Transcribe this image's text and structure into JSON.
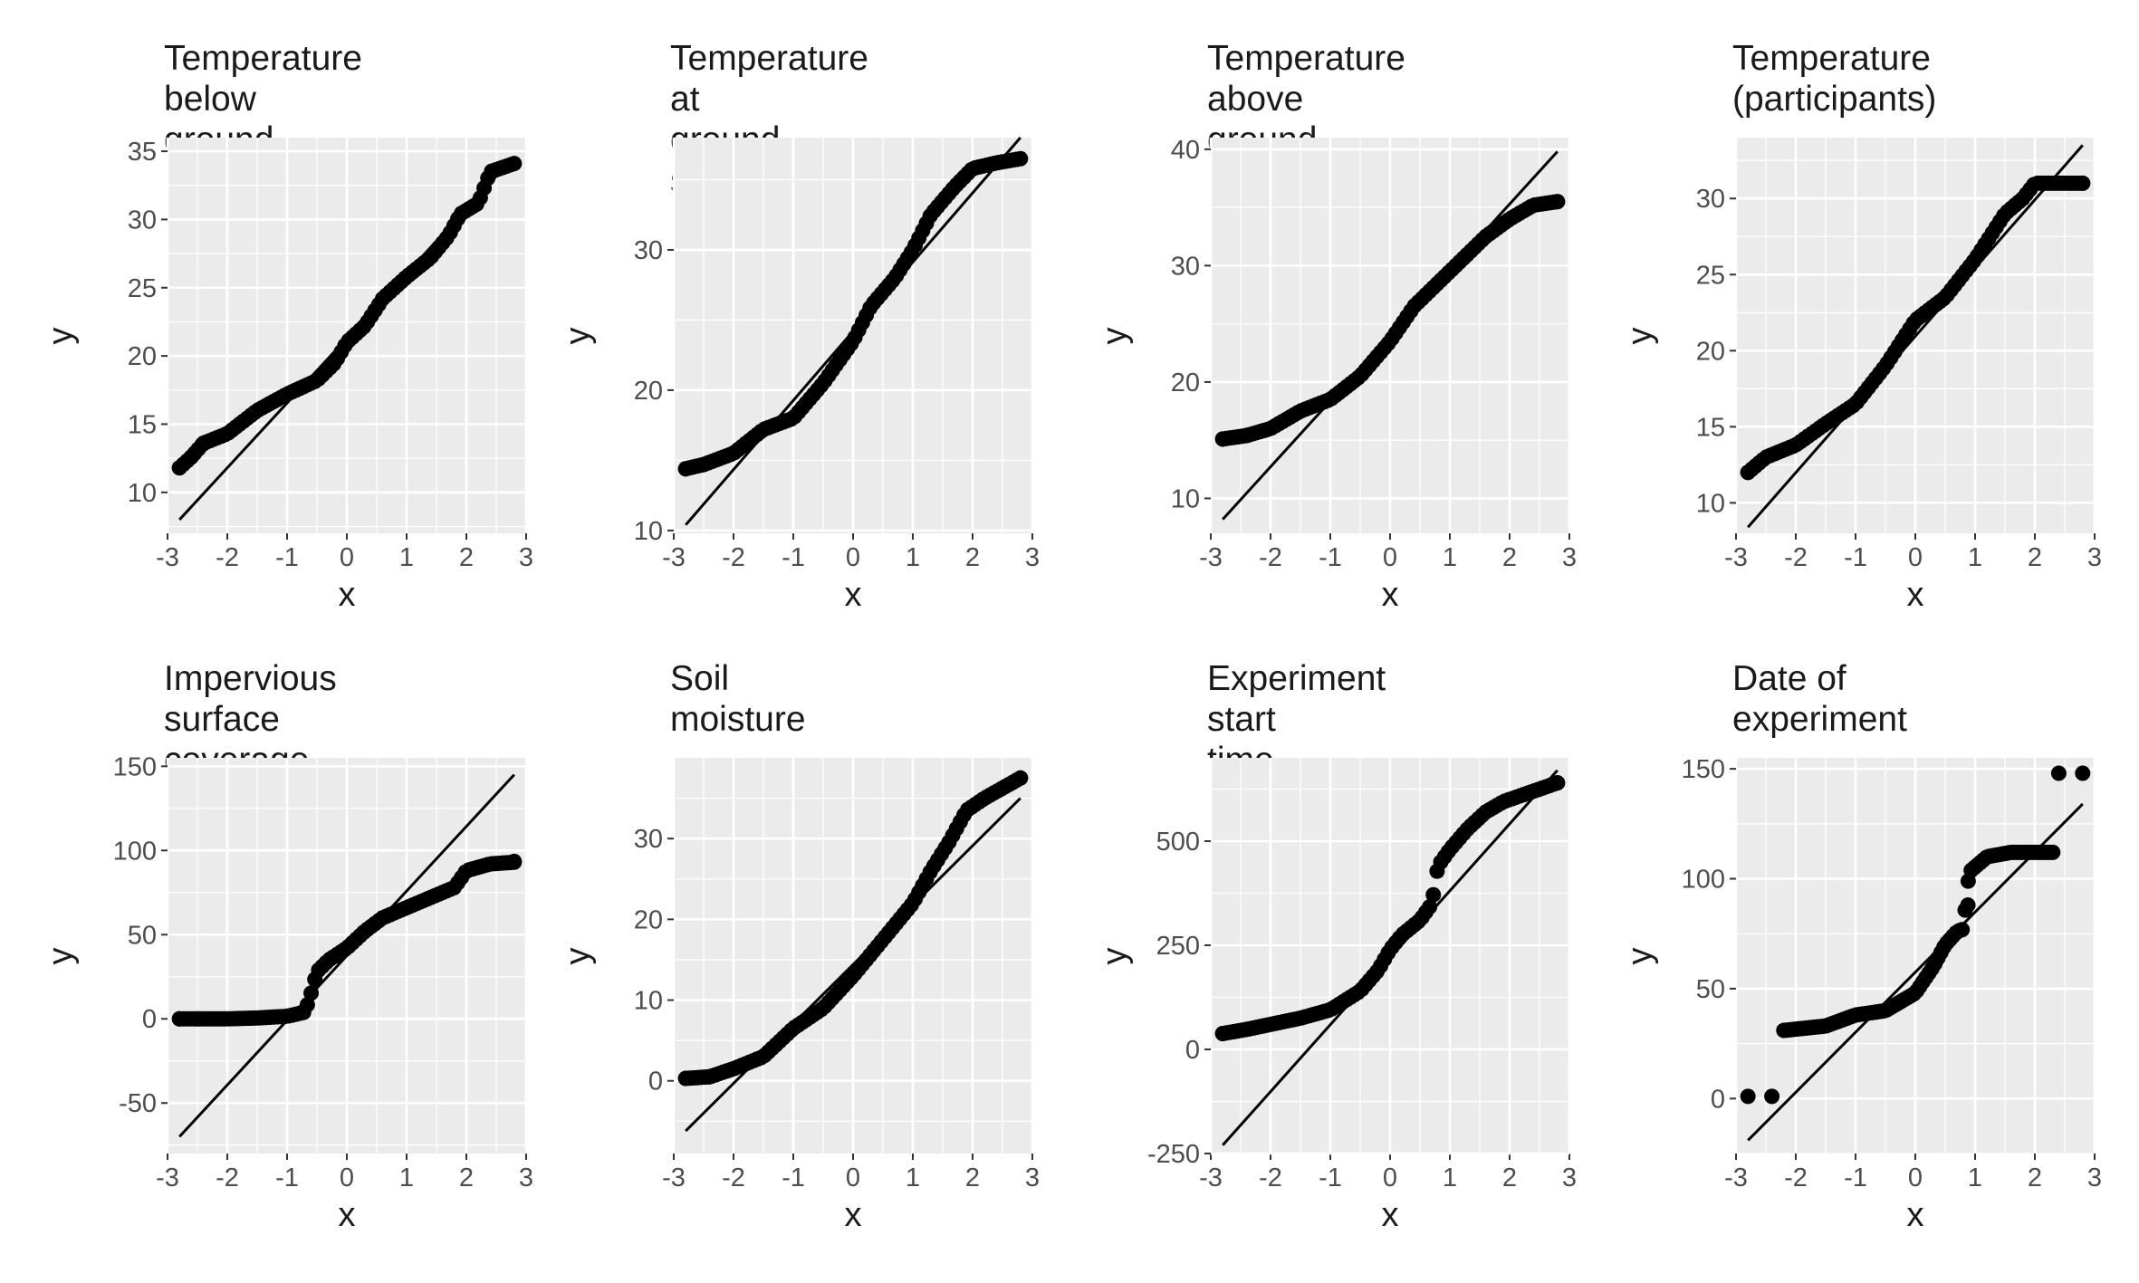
{
  "chart_data": [
    {
      "type": "scatter",
      "title": "Temperature below\nground",
      "xlabel": "x",
      "ylabel": "y",
      "xlim": [
        -3,
        3
      ],
      "ylim": [
        7,
        36
      ],
      "xticks": [
        -3,
        -2,
        -1,
        0,
        1,
        2,
        3
      ],
      "xtick_labels": [
        "-3",
        "-2",
        "-1",
        "0",
        "1",
        "2",
        "3"
      ],
      "yticks": [
        10,
        15,
        20,
        25,
        30,
        35
      ],
      "ytick_labels": [
        "10",
        "15",
        "20",
        "25",
        "30",
        "35"
      ],
      "grid": true,
      "reference_line": {
        "x": [
          -2.8,
          2.8
        ],
        "y": [
          8.0,
          34.6
        ]
      },
      "series": [
        {
          "knots": [
            [
              -2.8,
              11.8
            ],
            [
              -2.6,
              12.6
            ],
            [
              -2.4,
              13.6
            ],
            [
              -2.0,
              14.3
            ],
            [
              -1.5,
              16.0
            ],
            [
              -1.0,
              17.2
            ],
            [
              -0.5,
              18.2
            ],
            [
              -0.2,
              19.5
            ],
            [
              0.0,
              21.0
            ],
            [
              0.3,
              22.2
            ],
            [
              0.6,
              24.2
            ],
            [
              1.0,
              25.8
            ],
            [
              1.4,
              27.2
            ],
            [
              1.7,
              28.8
            ],
            [
              1.9,
              30.4
            ],
            [
              2.2,
              31.2
            ],
            [
              2.4,
              33.5
            ],
            [
              2.8,
              34.1
            ]
          ],
          "points": [
            [
              -2.8,
              11.8
            ],
            [
              -2.6,
              12.6
            ],
            [
              -2.4,
              13.6
            ]
          ]
        }
      ]
    },
    {
      "type": "scatter",
      "title": "Temperature at\nground surface",
      "xlabel": "x",
      "ylabel": "y",
      "xlim": [
        -3,
        3
      ],
      "ylim": [
        9.8,
        38
      ],
      "xticks": [
        -3,
        -2,
        -1,
        0,
        1,
        2,
        3
      ],
      "xtick_labels": [
        "-3",
        "-2",
        "-1",
        "0",
        "1",
        "2",
        "3"
      ],
      "yticks": [
        10,
        20,
        30
      ],
      "ytick_labels": [
        "10",
        "20",
        "30"
      ],
      "grid": true,
      "reference_line": {
        "x": [
          -2.8,
          2.8
        ],
        "y": [
          10.4,
          38.0
        ]
      },
      "series": [
        {
          "knots": [
            [
              -2.8,
              14.4
            ],
            [
              -2.5,
              14.7
            ],
            [
              -2.0,
              15.5
            ],
            [
              -1.5,
              17.2
            ],
            [
              -1.0,
              18.0
            ],
            [
              -0.5,
              20.5
            ],
            [
              0.0,
              23.5
            ],
            [
              0.3,
              26.0
            ],
            [
              0.7,
              28.0
            ],
            [
              1.0,
              30.0
            ],
            [
              1.3,
              32.5
            ],
            [
              1.7,
              34.5
            ],
            [
              2.0,
              35.8
            ],
            [
              2.4,
              36.2
            ],
            [
              2.8,
              36.5
            ]
          ],
          "points": [
            [
              -2.8,
              14.4
            ],
            [
              -2.5,
              14.7
            ]
          ]
        }
      ]
    },
    {
      "type": "scatter",
      "title": "Temperature above\nground",
      "xlabel": "x",
      "ylabel": "y",
      "xlim": [
        -3,
        3
      ],
      "ylim": [
        7,
        41
      ],
      "xticks": [
        -3,
        -2,
        -1,
        0,
        1,
        2,
        3
      ],
      "xtick_labels": [
        "-3",
        "-2",
        "-1",
        "0",
        "1",
        "2",
        "3"
      ],
      "yticks": [
        10,
        20,
        30,
        40
      ],
      "ytick_labels": [
        "10",
        "20",
        "30",
        "40"
      ],
      "grid": true,
      "reference_line": {
        "x": [
          -2.8,
          2.8
        ],
        "y": [
          8.2,
          39.8
        ]
      },
      "series": [
        {
          "knots": [
            [
              -2.8,
              15.1
            ],
            [
              -2.4,
              15.4
            ],
            [
              -2.0,
              16.0
            ],
            [
              -1.5,
              17.5
            ],
            [
              -1.0,
              18.5
            ],
            [
              -0.5,
              20.5
            ],
            [
              0.0,
              23.5
            ],
            [
              0.4,
              26.5
            ],
            [
              0.8,
              28.5
            ],
            [
              1.2,
              30.5
            ],
            [
              1.6,
              32.5
            ],
            [
              2.0,
              34.0
            ],
            [
              2.4,
              35.2
            ],
            [
              2.8,
              35.5
            ]
          ],
          "points": [
            [
              -2.8,
              15.1
            ],
            [
              -2.4,
              15.4
            ],
            [
              2.8,
              35.5
            ]
          ]
        }
      ]
    },
    {
      "type": "scatter",
      "title": "Temperature\n(participants)",
      "xlabel": "x",
      "ylabel": "y",
      "xlim": [
        -3,
        3
      ],
      "ylim": [
        8,
        34
      ],
      "xticks": [
        -3,
        -2,
        -1,
        0,
        1,
        2,
        3
      ],
      "xtick_labels": [
        "-3",
        "-2",
        "-1",
        "0",
        "1",
        "2",
        "3"
      ],
      "yticks": [
        10,
        15,
        20,
        25,
        30
      ],
      "ytick_labels": [
        "10",
        "15",
        "20",
        "25",
        "30"
      ],
      "grid": true,
      "reference_line": {
        "x": [
          -2.8,
          2.8
        ],
        "y": [
          8.4,
          33.5
        ]
      },
      "series": [
        {
          "knots": [
            [
              -2.8,
              12.0
            ],
            [
              -2.5,
              13.0
            ],
            [
              -2.0,
              13.8
            ],
            [
              -1.5,
              15.2
            ],
            [
              -1.0,
              16.5
            ],
            [
              -0.5,
              19.0
            ],
            [
              0.0,
              22.0
            ],
            [
              0.5,
              23.5
            ],
            [
              1.0,
              26.0
            ],
            [
              1.5,
              29.0
            ],
            [
              1.8,
              30.0
            ],
            [
              2.0,
              31.0
            ],
            [
              2.4,
              31.0
            ],
            [
              2.8,
              31.0
            ]
          ],
          "points": [
            [
              -2.8,
              12.0
            ],
            [
              2.8,
              31.0
            ]
          ]
        }
      ]
    },
    {
      "type": "scatter",
      "title": "Impervious surface\ncoverage",
      "xlabel": "x",
      "ylabel": "y",
      "xlim": [
        -3,
        3
      ],
      "ylim": [
        -80,
        155
      ],
      "xticks": [
        -3,
        -2,
        -1,
        0,
        1,
        2,
        3
      ],
      "xtick_labels": [
        "-3",
        "-2",
        "-1",
        "0",
        "1",
        "2",
        "3"
      ],
      "yticks": [
        -50,
        0,
        50,
        100,
        150
      ],
      "ytick_labels": [
        "-50",
        "0",
        "50",
        "100",
        "150"
      ],
      "grid": true,
      "reference_line": {
        "x": [
          -2.8,
          2.8
        ],
        "y": [
          -70,
          145
        ]
      },
      "series": [
        {
          "knots": [
            [
              -2.8,
              0
            ],
            [
              -2.5,
              0
            ],
            [
              -2.0,
              0
            ],
            [
              -1.5,
              0.5
            ],
            [
              -1.0,
              1.5
            ],
            [
              -0.7,
              4
            ],
            [
              -0.6,
              15
            ],
            [
              -0.5,
              28
            ],
            [
              -0.3,
              35
            ],
            [
              0.0,
              42
            ],
            [
              0.3,
              52
            ],
            [
              0.6,
              60
            ],
            [
              1.0,
              66
            ],
            [
              1.4,
              72
            ],
            [
              1.8,
              78
            ],
            [
              2.0,
              88
            ],
            [
              2.4,
              92
            ],
            [
              2.8,
              93
            ]
          ],
          "points": [
            [
              -2.8,
              0
            ],
            [
              -2.5,
              0
            ],
            [
              2.8,
              93.5
            ]
          ]
        }
      ]
    },
    {
      "type": "scatter",
      "title": "Soil moisture",
      "xlabel": "x",
      "ylabel": "y",
      "xlim": [
        -3,
        3
      ],
      "ylim": [
        -9,
        40
      ],
      "xticks": [
        -3,
        -2,
        -1,
        0,
        1,
        2,
        3
      ],
      "xtick_labels": [
        "-3",
        "-2",
        "-1",
        "0",
        "1",
        "2",
        "3"
      ],
      "yticks": [
        0,
        10,
        20,
        30
      ],
      "ytick_labels": [
        "0",
        "10",
        "20",
        "30"
      ],
      "grid": true,
      "reference_line": {
        "x": [
          -2.8,
          2.8
        ],
        "y": [
          -6.2,
          35.0
        ]
      },
      "series": [
        {
          "knots": [
            [
              -2.8,
              0.3
            ],
            [
              -2.4,
              0.5
            ],
            [
              -2.0,
              1.5
            ],
            [
              -1.5,
              3.0
            ],
            [
              -1.0,
              6.5
            ],
            [
              -0.5,
              9.0
            ],
            [
              0.0,
              13.0
            ],
            [
              0.5,
              17.5
            ],
            [
              1.0,
              22.0
            ],
            [
              1.3,
              26.0
            ],
            [
              1.6,
              29.5
            ],
            [
              1.9,
              33.5
            ],
            [
              2.2,
              35.0
            ],
            [
              2.8,
              37.5
            ]
          ],
          "points": [
            [
              -2.8,
              0.3
            ],
            [
              -2.4,
              0.5
            ],
            [
              2.8,
              37.5
            ]
          ]
        }
      ]
    },
    {
      "type": "scatter",
      "title": "Experiment start\ntime",
      "xlabel": "x",
      "ylabel": "y",
      "xlim": [
        -3,
        3
      ],
      "ylim": [
        -250,
        700
      ],
      "xticks": [
        -3,
        -2,
        -1,
        0,
        1,
        2,
        3
      ],
      "xtick_labels": [
        "-3",
        "-2",
        "-1",
        "0",
        "1",
        "2",
        "3"
      ],
      "yticks": [
        -250,
        0,
        250,
        500
      ],
      "ytick_labels": [
        "-250",
        "0",
        "250",
        "500"
      ],
      "grid": true,
      "reference_line": {
        "x": [
          -2.8,
          2.8
        ],
        "y": [
          -230,
          670
        ]
      },
      "series": [
        {
          "knots": [
            [
              -2.8,
              38
            ],
            [
              -2.4,
              48
            ],
            [
              -2.0,
              60
            ],
            [
              -1.5,
              75
            ],
            [
              -1.0,
              95
            ],
            [
              -0.5,
              140
            ],
            [
              -0.2,
              190
            ],
            [
              0.0,
              240
            ],
            [
              0.2,
              275
            ],
            [
              0.5,
              310
            ],
            [
              0.7,
              350
            ],
            [
              0.8,
              440
            ],
            [
              1.0,
              480
            ],
            [
              1.3,
              530
            ],
            [
              1.6,
              570
            ],
            [
              1.9,
              595
            ],
            [
              2.2,
              610
            ],
            [
              2.8,
              640
            ]
          ],
          "points": [
            [
              -2.8,
              38
            ],
            [
              2.8,
              640
            ]
          ]
        }
      ]
    },
    {
      "type": "scatter",
      "title": "Date of experiment",
      "xlabel": "x",
      "ylabel": "y",
      "xlim": [
        -3,
        3
      ],
      "ylim": [
        -25,
        155
      ],
      "xticks": [
        -3,
        -2,
        -1,
        0,
        1,
        2,
        3
      ],
      "xtick_labels": [
        "-3",
        "-2",
        "-1",
        "0",
        "1",
        "2",
        "3"
      ],
      "yticks": [
        0,
        50,
        100,
        150
      ],
      "ytick_labels": [
        "0",
        "50",
        "100",
        "150"
      ],
      "grid": true,
      "reference_line": {
        "x": [
          -2.8,
          2.8
        ],
        "y": [
          -19,
          134
        ]
      },
      "series": [
        {
          "knots": [
            [
              -2.2,
              31
            ],
            [
              -1.5,
              33
            ],
            [
              -1.0,
              38
            ],
            [
              -0.5,
              40
            ],
            [
              0.0,
              48
            ],
            [
              0.3,
              60
            ],
            [
              0.5,
              70
            ],
            [
              0.7,
              76
            ],
            [
              0.8,
              77
            ],
            [
              0.9,
              103
            ],
            [
              1.2,
              110
            ],
            [
              1.6,
              112
            ],
            [
              2.0,
              112
            ],
            [
              2.3,
              112
            ]
          ],
          "points": [
            [
              -2.8,
              1
            ],
            [
              -2.4,
              1
            ],
            [
              0.88,
              88
            ],
            [
              2.4,
              148
            ],
            [
              2.8,
              148
            ]
          ]
        }
      ]
    }
  ]
}
